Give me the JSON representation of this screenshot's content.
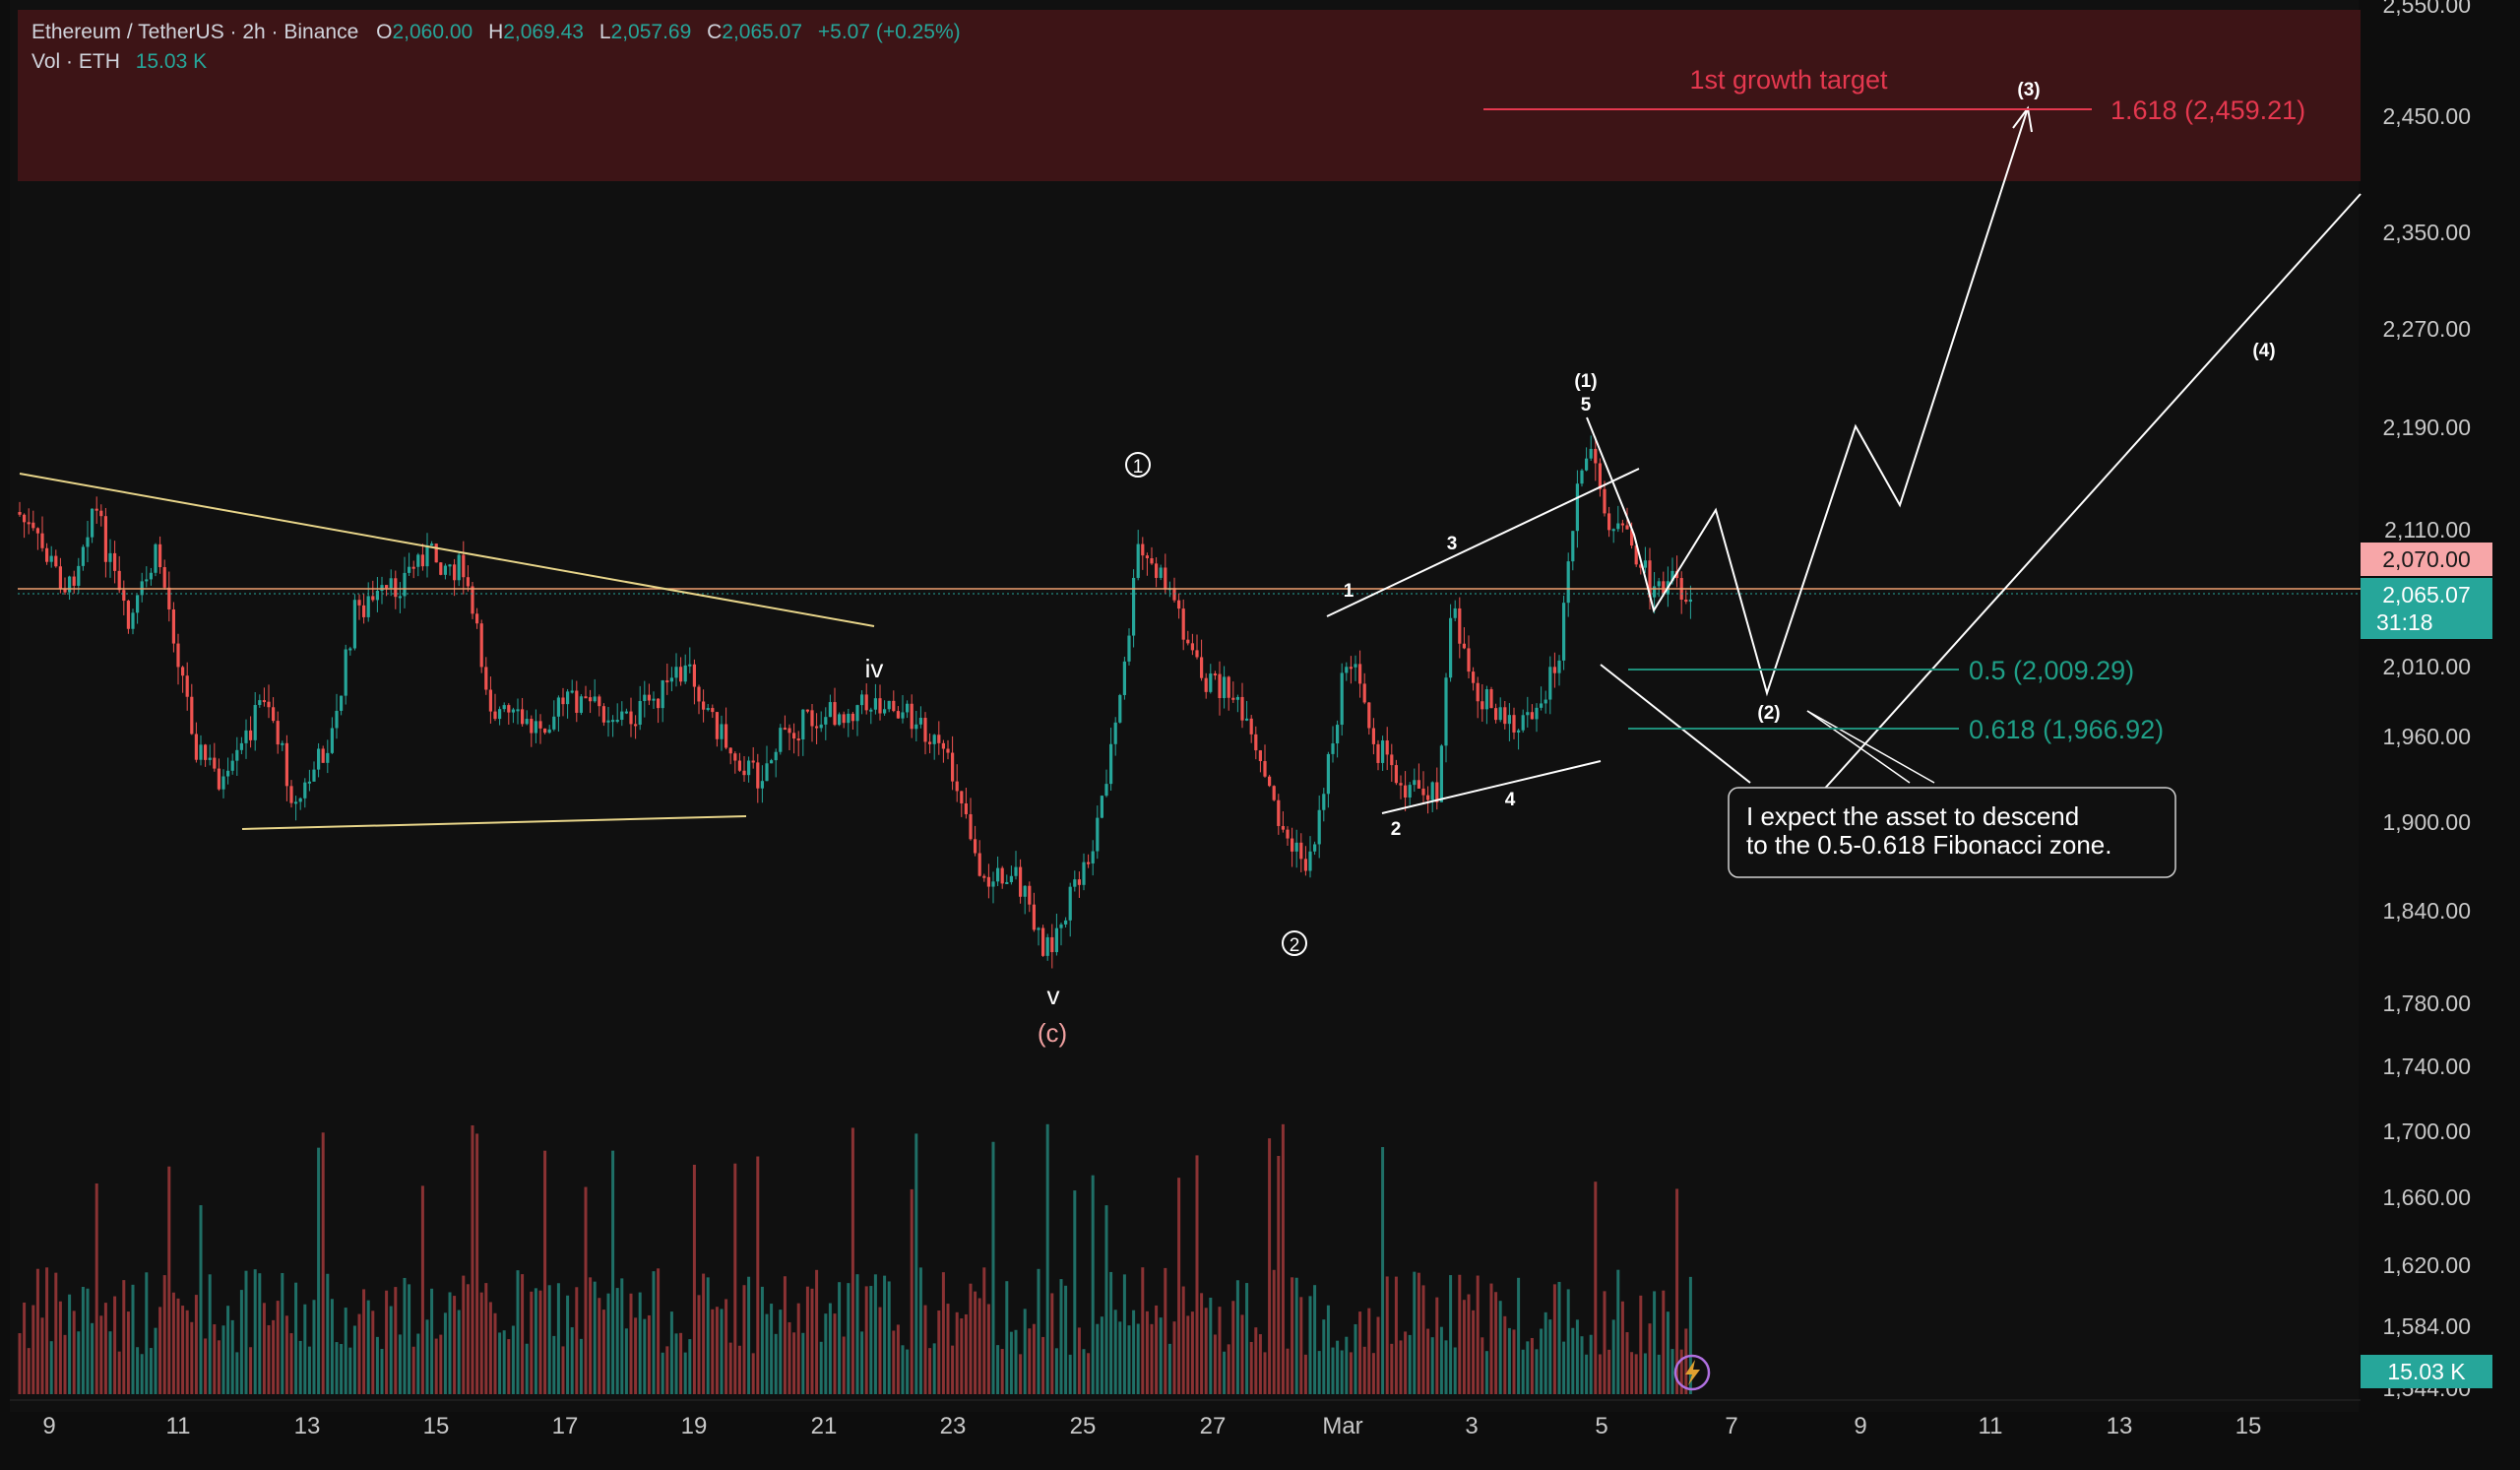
{
  "header": {
    "symbol": "Ethereum / TetherUS · 2h · Binance",
    "o_label": "O",
    "o_val": "2,060.00",
    "h_label": "H",
    "h_val": "2,069.43",
    "l_label": "L",
    "l_val": "2,057.69",
    "c_label": "C",
    "c_val": "2,065.07",
    "change": "+5.07 (+0.25%)",
    "vol_label": "Vol · ETH",
    "vol_val": "15.03 K"
  },
  "colors": {
    "bg": "#0d0d0d",
    "up": "#26a69a",
    "down": "#ef5350",
    "target_zone": "#3d1416",
    "target_line": "#e5384f",
    "fib_line": "#1f8f7a",
    "trendline": "#e8d58a",
    "wave_line": "#ffffff",
    "price_label_bg": "#26a69a",
    "level_label_bg": "#f7a6a8"
  },
  "price_axis": {
    "ticks": [
      "2,550.00",
      "2,450.00",
      "2,350.00",
      "2,270.00",
      "2,190.00",
      "2,110.00",
      "2,010.00",
      "1,960.00",
      "1,900.00",
      "1,840.00",
      "1,780.00",
      "1,740.00",
      "1,700.00",
      "1,660.00",
      "1,620.00",
      "1,584.00",
      "1,544.00"
    ],
    "current_price": "2,065.07",
    "countdown": "31:18",
    "level_price": "2,070.00",
    "volume_badge": "15.03 K"
  },
  "time_axis": {
    "ticks": [
      "9",
      "11",
      "13",
      "15",
      "17",
      "19",
      "21",
      "23",
      "25",
      "27",
      "Mar",
      "3",
      "5",
      "7",
      "9",
      "11",
      "13",
      "15"
    ]
  },
  "annotations": {
    "target_text": "1st growth target",
    "fib_1618": "1.618 (2,459.21)",
    "fib_05": "0.5 (2,009.29)",
    "fib_0618": "0.618 (1,966.92)",
    "callout_line1": "I expect the asset to descend",
    "callout_line2": "to the 0.5-0.618 Fibonacci zone.",
    "wave_iv": "iv",
    "wave_v": "v",
    "wave_c": "(c)",
    "wave_circle1": "1",
    "wave_circle2": "2",
    "sub1": "1",
    "sub2": "2",
    "sub3": "3",
    "sub4": "4",
    "sub5": "5",
    "w1": "(1)",
    "w2": "(2)",
    "w3": "(3)",
    "w4": "(4)"
  },
  "icons": {
    "alert": "lightning-bolt-icon"
  }
}
